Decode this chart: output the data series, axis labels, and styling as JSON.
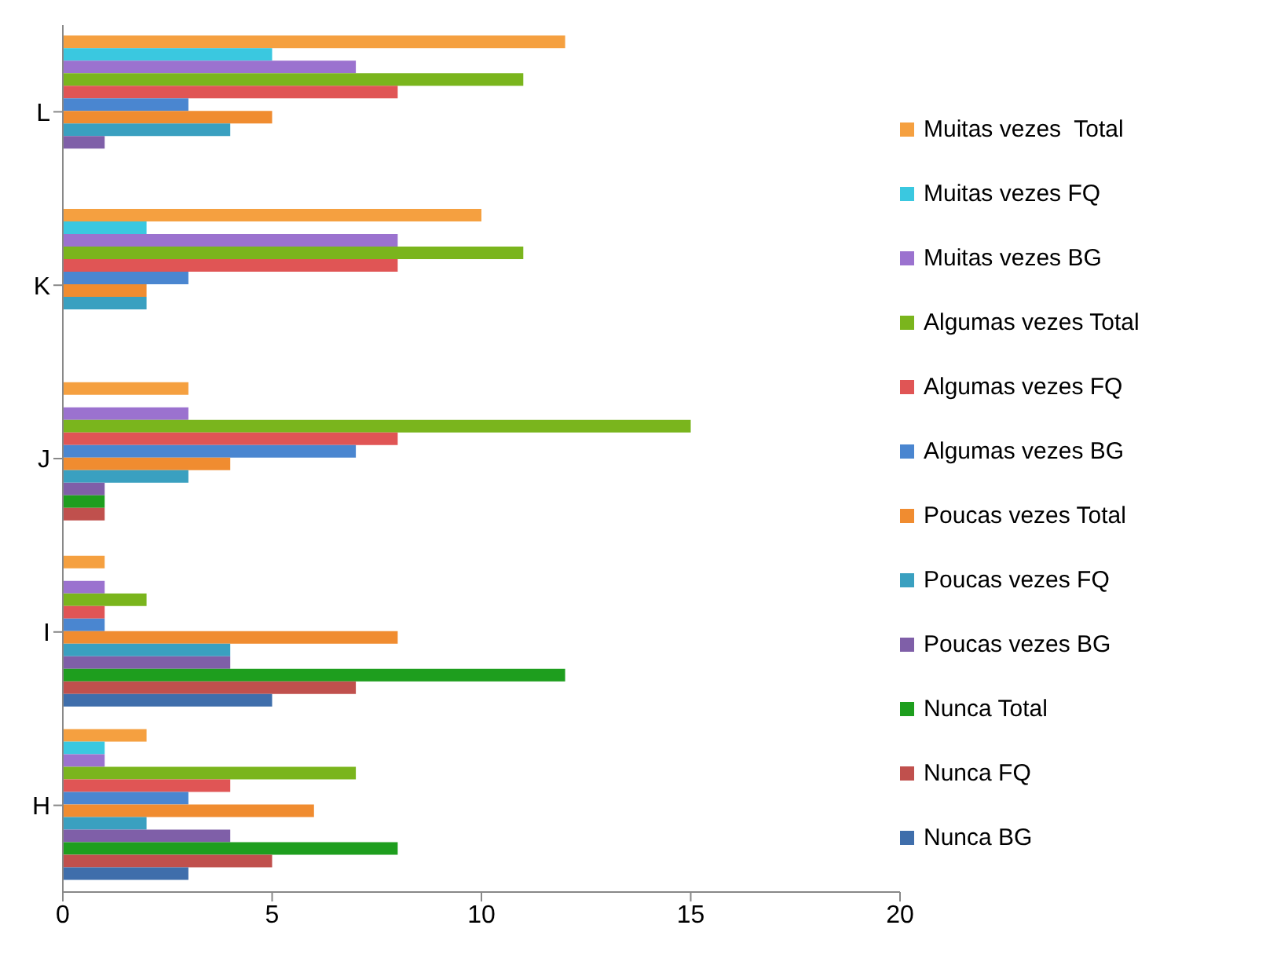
{
  "chart_data": {
    "type": "bar",
    "orientation": "horizontal",
    "categories": [
      "L",
      "K",
      "J",
      "I",
      "H"
    ],
    "series": [
      {
        "name": "Nunca BG",
        "color": "#3f6eab",
        "values": [
          0,
          0,
          0,
          5,
          3
        ]
      },
      {
        "name": "Nunca FQ",
        "color": "#c0504d",
        "values": [
          0,
          0,
          1,
          7,
          5
        ]
      },
      {
        "name": "Nunca Total",
        "color": "#1e9e1e",
        "values": [
          0,
          0,
          1,
          12,
          8
        ]
      },
      {
        "name": "Poucas vezes BG",
        "color": "#7f5fa8",
        "values": [
          1,
          0,
          1,
          4,
          4
        ]
      },
      {
        "name": "Poucas vezes FQ",
        "color": "#3aa0c0",
        "values": [
          4,
          2,
          3,
          4,
          2
        ]
      },
      {
        "name": "Poucas vezes Total",
        "color": "#f08c30",
        "values": [
          5,
          2,
          4,
          8,
          6
        ]
      },
      {
        "name": "Algumas vezes BG",
        "color": "#4a86d0",
        "values": [
          3,
          3,
          7,
          1,
          3
        ]
      },
      {
        "name": "Algumas vezes FQ",
        "color": "#e05555",
        "values": [
          8,
          8,
          8,
          1,
          4
        ]
      },
      {
        "name": "Algumas vezes Total",
        "color": "#7ab51d",
        "values": [
          11,
          11,
          15,
          2,
          7
        ]
      },
      {
        "name": "Muitas vezes BG",
        "color": "#9b72cf",
        "values": [
          7,
          8,
          3,
          1,
          1
        ]
      },
      {
        "name": "Muitas vezes FQ",
        "color": "#3ac8e0",
        "values": [
          5,
          2,
          0,
          0,
          1
        ]
      },
      {
        "name": "Muitas vezes  Total",
        "color": "#f5a040",
        "values": [
          12,
          10,
          3,
          1,
          2
        ]
      }
    ],
    "xlim": [
      0,
      20
    ],
    "xticks": [
      0,
      5,
      10,
      15,
      20
    ],
    "legend": "right",
    "grid": false
  }
}
